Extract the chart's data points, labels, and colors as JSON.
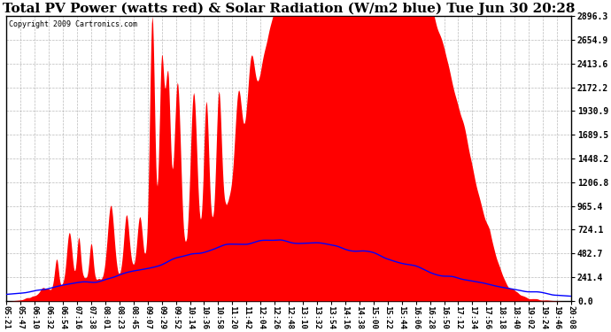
{
  "title": "Total PV Power (watts red) & Solar Radiation (W/m2 blue) Tue Jun 30 20:28",
  "copyright_text": "Copyright 2009 Cartronics.com",
  "title_fontsize": 11,
  "background_color": "#ffffff",
  "plot_bg_color": "#ffffff",
  "grid_color": "#aaaaaa",
  "y_ticks": [
    0.0,
    241.4,
    482.7,
    724.1,
    965.4,
    1206.8,
    1448.2,
    1689.5,
    1930.9,
    2172.2,
    2413.6,
    2654.9,
    2896.3
  ],
  "y_max": 2896.3,
  "x_tick_labels": [
    "05:21",
    "05:47",
    "06:10",
    "06:32",
    "06:54",
    "07:16",
    "07:38",
    "08:01",
    "08:23",
    "08:45",
    "09:07",
    "09:29",
    "09:52",
    "10:14",
    "10:36",
    "10:58",
    "11:20",
    "11:42",
    "12:04",
    "12:26",
    "12:48",
    "13:10",
    "13:32",
    "13:54",
    "14:16",
    "14:38",
    "15:00",
    "15:22",
    "15:44",
    "16:06",
    "16:28",
    "16:50",
    "17:12",
    "17:34",
    "17:56",
    "18:18",
    "18:40",
    "19:02",
    "19:24",
    "19:46",
    "20:08"
  ],
  "pv_color": "#ff0000",
  "solar_color": "#0000ff",
  "n_points": 900
}
